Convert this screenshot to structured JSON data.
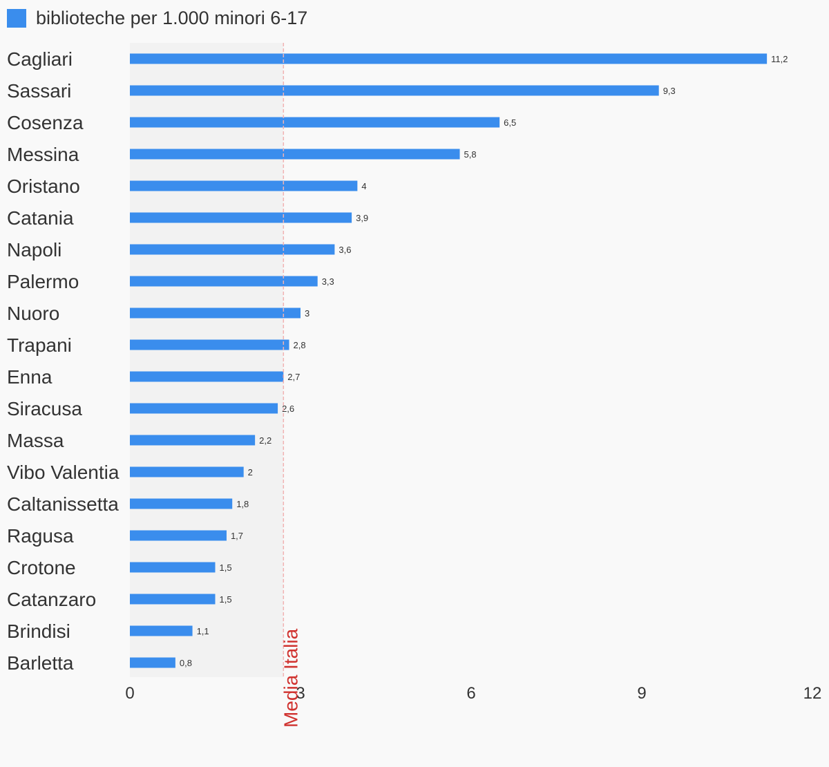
{
  "chart_data": {
    "type": "bar",
    "orientation": "horizontal",
    "series": [
      {
        "name": "biblioteche per 1.000 minori 6-17",
        "color": "#3a8ded",
        "values": [
          11.2,
          9.3,
          6.5,
          5.8,
          4,
          3.9,
          3.6,
          3.3,
          3,
          2.8,
          2.7,
          2.6,
          2.2,
          2,
          1.8,
          1.7,
          1.5,
          1.5,
          1.1,
          0.8
        ],
        "value_labels": [
          "11,2",
          "9,3",
          "6,5",
          "5,8",
          "4",
          "3,9",
          "3,6",
          "3,3",
          "3",
          "2,8",
          "2,7",
          "2,6",
          "2,2",
          "2",
          "1,8",
          "1,7",
          "1,5",
          "1,5",
          "1,1",
          "0,8"
        ]
      }
    ],
    "categories": [
      "Cagliari",
      "Sassari",
      "Cosenza",
      "Messina",
      "Oristano",
      "Catania",
      "Napoli",
      "Palermo",
      "Nuoro",
      "Trapani",
      "Enna",
      "Siracusa",
      "Massa",
      "Vibo Valentia",
      "Caltanissetta",
      "Ragusa",
      "Crotone",
      "Catanzaro",
      "Brindisi",
      "Barletta"
    ],
    "xlim": [
      0,
      12
    ],
    "x_ticks": [
      0,
      3,
      6,
      9,
      12
    ],
    "x_tick_labels": [
      "0",
      "3",
      "6",
      "9",
      "12"
    ],
    "reference_line": {
      "label": "Media Italia",
      "value": 2.7,
      "color": "#d0322f"
    },
    "legend_position": "top-left",
    "grid": false
  }
}
